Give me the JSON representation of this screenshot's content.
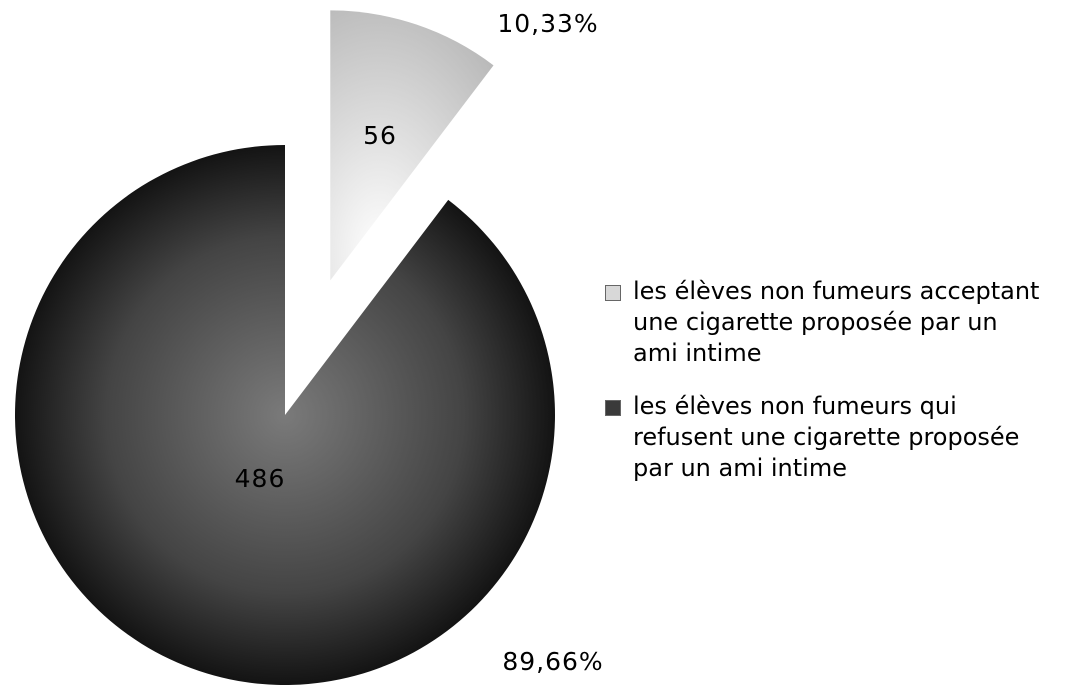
{
  "chart_data": {
    "type": "pie",
    "categories": [
      "les élèves non fumeurs acceptant une cigarette proposée par un ami intime",
      "les élèves non fumeurs qui refusent une cigarette proposée par un ami intime"
    ],
    "values": [
      56,
      486
    ],
    "percentages": [
      10.33,
      89.66
    ],
    "percentage_labels": [
      "10,33%",
      "89,66%"
    ],
    "colors": [
      "#d8d8d8",
      "#3a3a3a"
    ],
    "exploded": [
      true,
      false
    ],
    "legend": "right"
  }
}
